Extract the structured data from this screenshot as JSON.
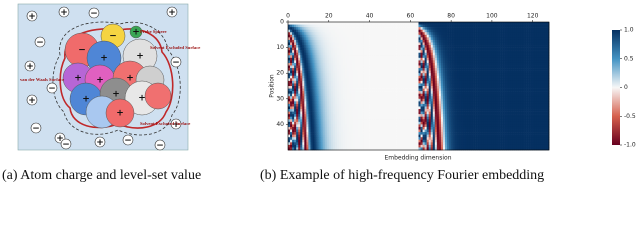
{
  "figure_a": {
    "labels": {
      "probe_sphere": "Probe Sphere",
      "ses_top": "Solvent Excluded Surface",
      "vdw": "van der Waals Surface",
      "ses_bottom": "Solvent Excluded Surface"
    },
    "atom_signs": [
      "−",
      "−",
      "+",
      "+",
      "+",
      "+",
      "+",
      "+",
      "+",
      "+",
      "+",
      "+"
    ],
    "charges": [
      "+",
      "+",
      "−",
      "+",
      "−",
      "+",
      "−",
      "+",
      "−",
      "+",
      "−",
      "−",
      "+",
      "−",
      "+",
      "−"
    ],
    "caption": "(a) Atom charge and level-set value"
  },
  "figure_b": {
    "chart_data": {
      "type": "heatmap",
      "xlabel": "Embedding dimension",
      "ylabel": "Position",
      "xlim": [
        0,
        128
      ],
      "xticks": [
        0,
        20,
        40,
        60,
        80,
        100,
        120
      ],
      "ylim": [
        0,
        50
      ],
      "yticks": [
        0,
        10,
        20,
        30,
        40
      ],
      "colorbar": {
        "lim": [
          -1,
          1
        ],
        "ticks": [
          {
            "value": 1,
            "label": "1.0"
          },
          {
            "value": 0.5,
            "label": "0.5"
          },
          0,
          {
            "value": -0.5,
            "label": "-0.5"
          },
          {
            "value": -1,
            "label": "-1.0"
          }
        ]
      }
    },
    "caption": "(b) Example of high-frequency Fourier embedding"
  }
}
